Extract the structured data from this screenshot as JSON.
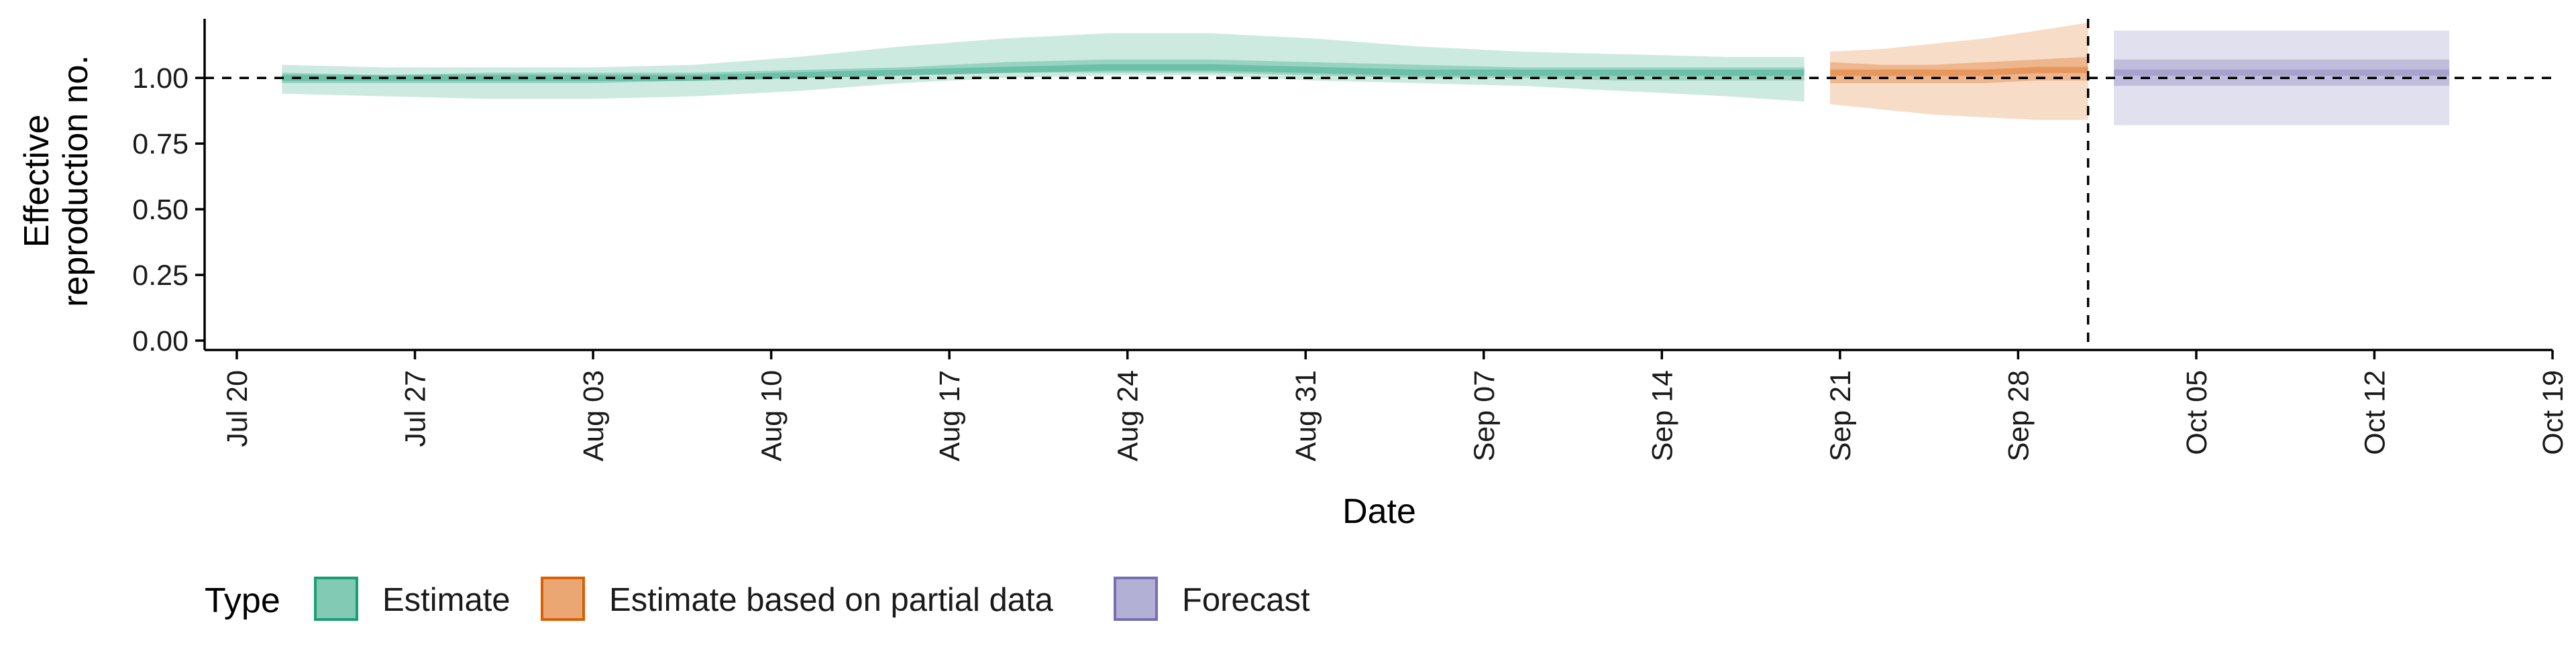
{
  "chart_data": {
    "type": "area",
    "title": "",
    "xlabel": "Date",
    "ylabel_lines": [
      "Effective",
      "reproduction no."
    ],
    "x_ticks": [
      "Jul 20",
      "Jul 27",
      "Aug 03",
      "Aug 10",
      "Aug 17",
      "Aug 24",
      "Aug 31",
      "Sep 07",
      "Sep 14",
      "Sep 21",
      "Sep 28",
      "Oct 05",
      "Oct 12",
      "Oct 19"
    ],
    "xlim": [
      "2020-07-20",
      "2020-10-19"
    ],
    "y_ticks": [
      "0.00",
      "0.25",
      "0.50",
      "0.75",
      "1.00"
    ],
    "ylim": [
      0,
      1.22
    ],
    "reference_line_y": 1.0,
    "reference_line_x": "2020-10-01",
    "grid": false,
    "legend": {
      "title": "Type",
      "position": "bottom",
      "items": [
        "Estimate",
        "Estimate based on partial data",
        "Forecast"
      ]
    },
    "colors": {
      "Estimate": "#1b9e77",
      "Estimate based on partial data": "#d95f02",
      "Forecast": "#7570b3"
    },
    "series": [
      {
        "name": "Estimate",
        "dates": [
          "2020-07-23",
          "2020-07-27",
          "2020-07-31",
          "2020-08-04",
          "2020-08-08",
          "2020-08-12",
          "2020-08-16",
          "2020-08-20",
          "2020-08-24",
          "2020-08-28",
          "2020-09-01",
          "2020-09-05",
          "2020-09-09",
          "2020-09-13",
          "2020-09-17",
          "2020-09-20"
        ],
        "median": [
          1.0,
          1.0,
          1.0,
          1.0,
          1.0,
          1.01,
          1.02,
          1.03,
          1.04,
          1.04,
          1.03,
          1.02,
          1.02,
          1.02,
          1.02,
          1.02
        ],
        "lower_50": [
          0.98,
          0.98,
          0.98,
          0.98,
          0.99,
          1.0,
          1.01,
          1.02,
          1.02,
          1.02,
          1.01,
          1.0,
          1.0,
          0.99,
          0.99,
          0.99
        ],
        "upper_50": [
          1.02,
          1.01,
          1.02,
          1.02,
          1.02,
          1.03,
          1.04,
          1.06,
          1.07,
          1.07,
          1.06,
          1.05,
          1.04,
          1.04,
          1.04,
          1.04
        ],
        "lower_90": [
          0.94,
          0.93,
          0.92,
          0.92,
          0.93,
          0.95,
          0.98,
          1.0,
          1.01,
          1.01,
          0.99,
          0.98,
          0.97,
          0.95,
          0.93,
          0.91
        ],
        "upper_90": [
          1.05,
          1.04,
          1.04,
          1.04,
          1.05,
          1.08,
          1.12,
          1.15,
          1.17,
          1.17,
          1.15,
          1.12,
          1.1,
          1.09,
          1.08,
          1.08
        ]
      },
      {
        "name": "Estimate based on partial data",
        "dates": [
          "2020-09-21",
          "2020-09-23",
          "2020-09-25",
          "2020-09-27",
          "2020-09-29",
          "2020-10-01"
        ],
        "median": [
          1.02,
          1.02,
          1.02,
          1.02,
          1.03,
          1.03
        ],
        "lower_50": [
          0.98,
          0.98,
          0.98,
          0.98,
          0.99,
          0.99
        ],
        "upper_50": [
          1.06,
          1.05,
          1.05,
          1.06,
          1.07,
          1.08
        ],
        "lower_90": [
          0.9,
          0.88,
          0.86,
          0.85,
          0.84,
          0.84
        ],
        "upper_90": [
          1.1,
          1.11,
          1.13,
          1.15,
          1.18,
          1.21
        ]
      },
      {
        "name": "Forecast",
        "dates": [
          "2020-10-02",
          "2020-10-15"
        ],
        "median": [
          1.02,
          1.02
        ],
        "lower_50": [
          0.97,
          0.97
        ],
        "upper_50": [
          1.07,
          1.07
        ],
        "lower_90": [
          0.82,
          0.82
        ],
        "upper_90": [
          1.18,
          1.18
        ]
      }
    ]
  }
}
